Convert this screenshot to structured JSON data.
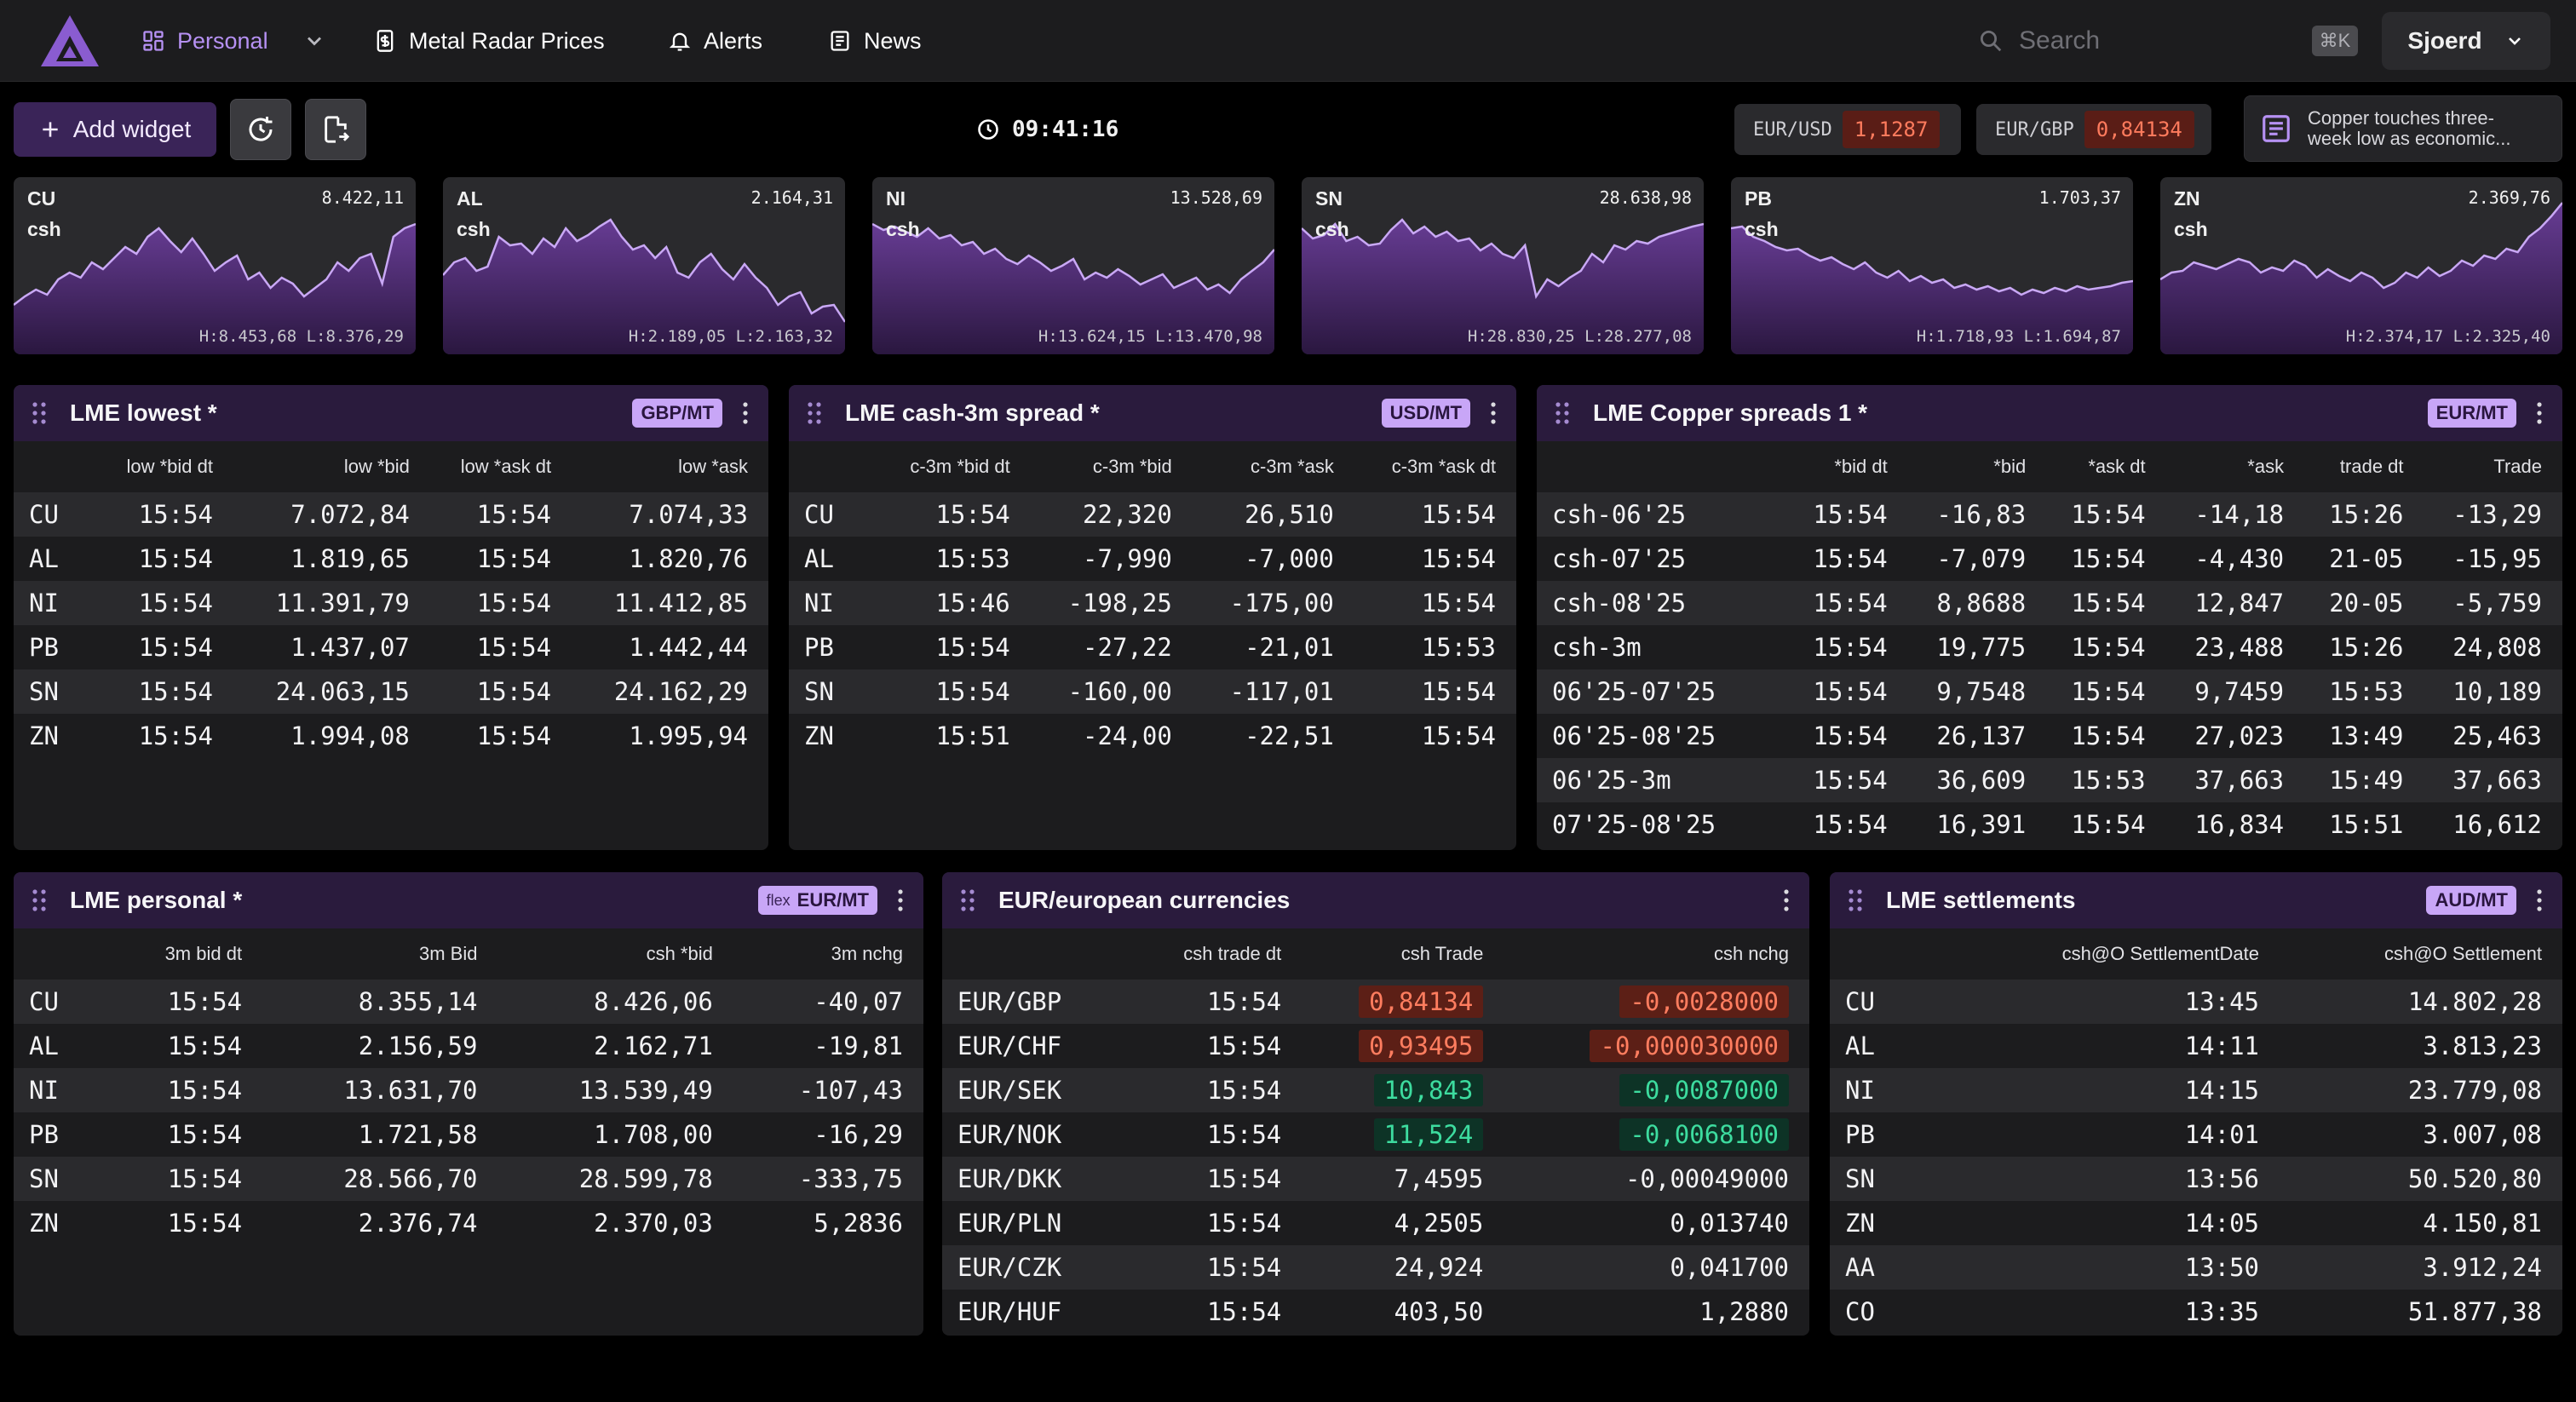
{
  "nav": {
    "workspace": "Personal",
    "metal_radar": "Metal Radar Prices",
    "alerts": "Alerts",
    "news": "News",
    "search_placeholder": "Search",
    "shortcut": "⌘K",
    "user": "Sjoerd"
  },
  "toolbar": {
    "add_widget": "Add widget",
    "clock": "09:41:16",
    "fx": [
      {
        "pair": "EUR/USD",
        "value": "1,1287"
      },
      {
        "pair": "EUR/GBP",
        "value": "0,84134"
      }
    ],
    "news_headline": "Copper touches three-week low as economic..."
  },
  "colors": {
    "accent": "#b691f3",
    "widget_header": "#2a1b3d",
    "badge": "#c8a6f7",
    "negative": "#ff7d5f",
    "positive": "#3ddc9f"
  },
  "sparks": [
    {
      "sym": "CU",
      "sub": "csh",
      "last": "8.422,11",
      "hl": "H:8.453,68 L:8.376,29"
    },
    {
      "sym": "AL",
      "sub": "csh",
      "last": "2.164,31",
      "hl": "H:2.189,05 L:2.163,32"
    },
    {
      "sym": "NI",
      "sub": "csh",
      "last": "13.528,69",
      "hl": "H:13.624,15 L:13.470,98"
    },
    {
      "sym": "SN",
      "sub": "csh",
      "last": "28.638,98",
      "hl": "H:28.830,25 L:28.277,08"
    },
    {
      "sym": "PB",
      "sub": "csh",
      "last": "1.703,37",
      "hl": "H:1.718,93 L:1.694,87"
    },
    {
      "sym": "ZN",
      "sub": "csh",
      "last": "2.369,76",
      "hl": "H:2.374,17 L:2.325,40"
    }
  ],
  "widgets": {
    "lowest": {
      "title": "LME lowest *",
      "badge": "GBP/MT",
      "columns": [
        "",
        "low *bid dt",
        "low *bid",
        "low *ask dt",
        "low *ask"
      ],
      "rows": [
        [
          "CU",
          "15:54",
          "7.072,84",
          "15:54",
          "7.074,33"
        ],
        [
          "AL",
          "15:54",
          "1.819,65",
          "15:54",
          "1.820,76"
        ],
        [
          "NI",
          "15:54",
          "11.391,79",
          "15:54",
          "11.412,85"
        ],
        [
          "PB",
          "15:54",
          "1.437,07",
          "15:54",
          "1.442,44"
        ],
        [
          "SN",
          "15:54",
          "24.063,15",
          "15:54",
          "24.162,29"
        ],
        [
          "ZN",
          "15:54",
          "1.994,08",
          "15:54",
          "1.995,94"
        ]
      ]
    },
    "c3m": {
      "title": "LME cash-3m spread *",
      "badge": "USD/MT",
      "columns": [
        "",
        "c-3m *bid dt",
        "c-3m *bid",
        "c-3m *ask",
        "c-3m *ask dt"
      ],
      "rows": [
        [
          "CU",
          "15:54",
          "22,320",
          "26,510",
          "15:54"
        ],
        [
          "AL",
          "15:53",
          "-7,990",
          "-7,000",
          "15:54"
        ],
        [
          "NI",
          "15:46",
          "-198,25",
          "-175,00",
          "15:54"
        ],
        [
          "PB",
          "15:54",
          "-27,22",
          "-21,01",
          "15:53"
        ],
        [
          "SN",
          "15:54",
          "-160,00",
          "-117,01",
          "15:54"
        ],
        [
          "ZN",
          "15:51",
          "-24,00",
          "-22,51",
          "15:54"
        ]
      ]
    },
    "copper": {
      "title": "LME Copper spreads 1 *",
      "badge": "EUR/MT",
      "columns": [
        "",
        "*bid dt",
        "*bid",
        "*ask dt",
        "*ask",
        "trade dt",
        "Trade"
      ],
      "rows": [
        [
          "csh-06'25",
          "15:54",
          "-16,83",
          "15:54",
          "-14,18",
          "15:26",
          "-13,29"
        ],
        [
          "csh-07'25",
          "15:54",
          "-7,079",
          "15:54",
          "-4,430",
          "21-05",
          "-15,95"
        ],
        [
          "csh-08'25",
          "15:54",
          "8,8688",
          "15:54",
          "12,847",
          "20-05",
          "-5,759"
        ],
        [
          "csh-3m",
          "15:54",
          "19,775",
          "15:54",
          "23,488",
          "15:26",
          "24,808"
        ],
        [
          "06'25-07'25",
          "15:54",
          "9,7548",
          "15:54",
          "9,7459",
          "15:53",
          "10,189"
        ],
        [
          "06'25-08'25",
          "15:54",
          "26,137",
          "15:54",
          "27,023",
          "13:49",
          "25,463"
        ],
        [
          "06'25-3m",
          "15:54",
          "36,609",
          "15:53",
          "37,663",
          "15:49",
          "37,663"
        ],
        [
          "07'25-08'25",
          "15:54",
          "16,391",
          "15:54",
          "16,834",
          "15:51",
          "16,612"
        ]
      ]
    },
    "personal": {
      "title": "LME personal *",
      "badge_prefix": "flex",
      "badge": "EUR/MT",
      "columns": [
        "",
        "3m bid dt",
        "3m Bid",
        "csh *bid",
        "3m nchg"
      ],
      "rows": [
        [
          "CU",
          "15:54",
          "8.355,14",
          "8.426,06",
          "-40,07"
        ],
        [
          "AL",
          "15:54",
          "2.156,59",
          "2.162,71",
          "-19,81"
        ],
        [
          "NI",
          "15:54",
          "13.631,70",
          "13.539,49",
          "-107,43"
        ],
        [
          "PB",
          "15:54",
          "1.721,58",
          "1.708,00",
          "-16,29"
        ],
        [
          "SN",
          "15:54",
          "28.566,70",
          "28.599,78",
          "-333,75"
        ],
        [
          "ZN",
          "15:54",
          "2.376,74",
          "2.370,03",
          "5,2836"
        ]
      ]
    },
    "eur": {
      "title": "EUR/european currencies",
      "columns": [
        "",
        "csh trade dt",
        "csh Trade",
        "csh nchg"
      ],
      "rows": [
        {
          "cells": [
            "EUR/GBP",
            "15:54",
            "0,84134",
            "-0,0028000"
          ],
          "flash": "red"
        },
        {
          "cells": [
            "EUR/CHF",
            "15:54",
            "0,93495",
            "-0,000030000"
          ],
          "flash": "red"
        },
        {
          "cells": [
            "EUR/SEK",
            "15:54",
            "10,843",
            "-0,0087000"
          ],
          "flash": "green"
        },
        {
          "cells": [
            "EUR/NOK",
            "15:54",
            "11,524",
            "-0,0068100"
          ],
          "flash": "green"
        },
        {
          "cells": [
            "EUR/DKK",
            "15:54",
            "7,4595",
            "-0,00049000"
          ],
          "flash": ""
        },
        {
          "cells": [
            "EUR/PLN",
            "15:54",
            "4,2505",
            "0,013740"
          ],
          "flash": ""
        },
        {
          "cells": [
            "EUR/CZK",
            "15:54",
            "24,924",
            "0,041700"
          ],
          "flash": ""
        },
        {
          "cells": [
            "EUR/HUF",
            "15:54",
            "403,50",
            "1,2880"
          ],
          "flash": ""
        }
      ]
    },
    "settle": {
      "title": "LME settlements",
      "badge": "AUD/MT",
      "columns": [
        "",
        "csh@O SettlementDate",
        "csh@O Settlement"
      ],
      "rows": [
        [
          "CU",
          "13:45",
          "14.802,28"
        ],
        [
          "AL",
          "14:11",
          "3.813,23"
        ],
        [
          "NI",
          "14:15",
          "23.779,08"
        ],
        [
          "PB",
          "14:01",
          "3.007,08"
        ],
        [
          "SN",
          "13:56",
          "50.520,80"
        ],
        [
          "ZN",
          "14:05",
          "4.150,81"
        ],
        [
          "AA",
          "13:50",
          "3.912,24"
        ],
        [
          "CO",
          "13:35",
          "51.877,38"
        ]
      ]
    }
  }
}
